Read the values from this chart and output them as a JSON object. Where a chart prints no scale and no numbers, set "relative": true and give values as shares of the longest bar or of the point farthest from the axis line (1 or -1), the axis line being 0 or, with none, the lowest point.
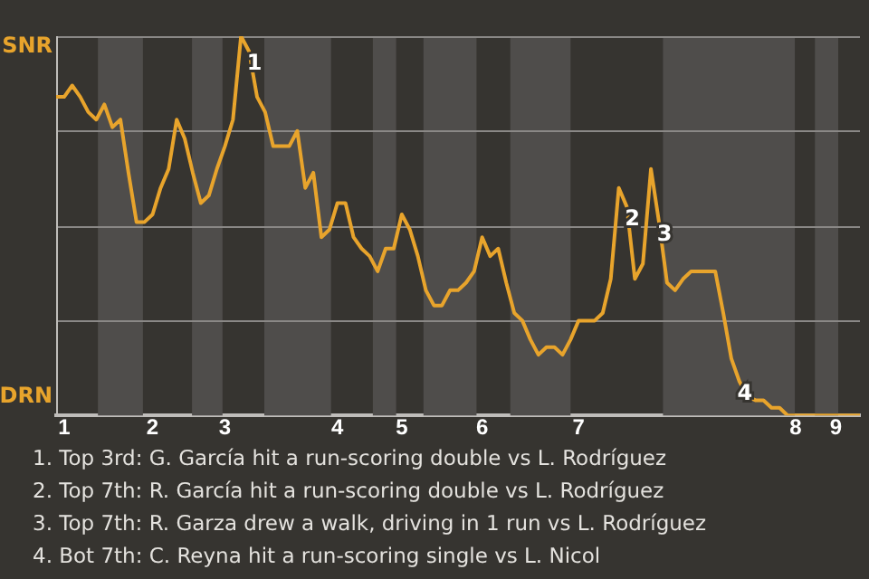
{
  "chart_data": {
    "type": "line",
    "relative": true,
    "grid": "y",
    "categories": [
      null,
      "1",
      null,
      null,
      null,
      null,
      null,
      null,
      null,
      null,
      null,
      null,
      "2",
      null,
      null,
      null,
      null,
      null,
      null,
      null,
      null,
      "3",
      null,
      null,
      null,
      null,
      null,
      null,
      null,
      null,
      null,
      null,
      null,
      null,
      null,
      "4",
      null,
      null,
      null,
      null,
      null,
      null,
      null,
      "5",
      null,
      null,
      null,
      null,
      null,
      null,
      null,
      null,
      null,
      "6",
      null,
      null,
      null,
      null,
      null,
      null,
      null,
      null,
      null,
      null,
      null,
      "7",
      null,
      null,
      null,
      null,
      null,
      null,
      null,
      null,
      null,
      null,
      null,
      null,
      null,
      null,
      null,
      null,
      null,
      null,
      null,
      null,
      null,
      null,
      null,
      null,
      null,
      null,
      "8",
      null,
      null,
      null,
      null,
      "9",
      null,
      null,
      null
    ],
    "series": [
      {
        "color": "#e8a42c",
        "values": [
          0.84,
          0.84,
          0.87,
          0.84,
          0.8,
          0.78,
          0.82,
          0.76,
          0.78,
          0.64,
          0.51,
          0.51,
          0.53,
          0.6,
          0.65,
          0.78,
          0.73,
          0.64,
          0.56,
          0.58,
          0.65,
          0.71,
          0.78,
          1,
          0.96,
          0.84,
          0.8,
          0.71,
          0.71,
          0.71,
          0.75,
          0.6,
          0.64,
          0.47,
          0.49,
          0.56,
          0.56,
          0.47,
          0.44,
          0.42,
          0.38,
          0.44,
          0.44,
          0.53,
          0.49,
          0.42,
          0.33,
          0.29,
          0.29,
          0.33,
          0.33,
          0.35,
          0.38,
          0.47,
          0.42,
          0.44,
          0.35,
          0.27,
          0.25,
          0.2,
          0.16,
          0.18,
          0.18,
          0.16,
          0.2,
          0.25,
          0.25,
          0.25,
          0.27,
          0.36,
          0.6,
          0.55,
          0.36,
          0.4,
          0.65,
          0.51,
          0.35,
          0.33,
          0.36,
          0.38,
          0.38,
          0.38,
          0.38,
          0.27,
          0.15,
          0.09,
          0.05,
          0.04,
          0.04,
          0.02,
          0.02,
          0,
          0,
          0,
          0,
          0,
          0,
          0,
          0,
          0,
          0
        ]
      }
    ],
    "annotations": [
      "SNR",
      "DRN",
      {
        "text": "1",
        "y": 0.96
      },
      {
        "text": "2",
        "y": 0.55
      },
      {
        "text": "3",
        "y": 0.51
      },
      {
        "text": "4",
        "y": 0.09
      },
      "1. Top 3rd: G. García hit a run-scoring double vs L. Rodríguez",
      "2. Top 7th: R. García hit a run-scoring double vs L. Rodríguez",
      "3. Top 7th: R. Garza drew a walk, driving in 1 run vs L. Rodríguez",
      "4. Bot 7th: C. Reyna hit a run-scoring single vs L. Nicol"
    ]
  }
}
